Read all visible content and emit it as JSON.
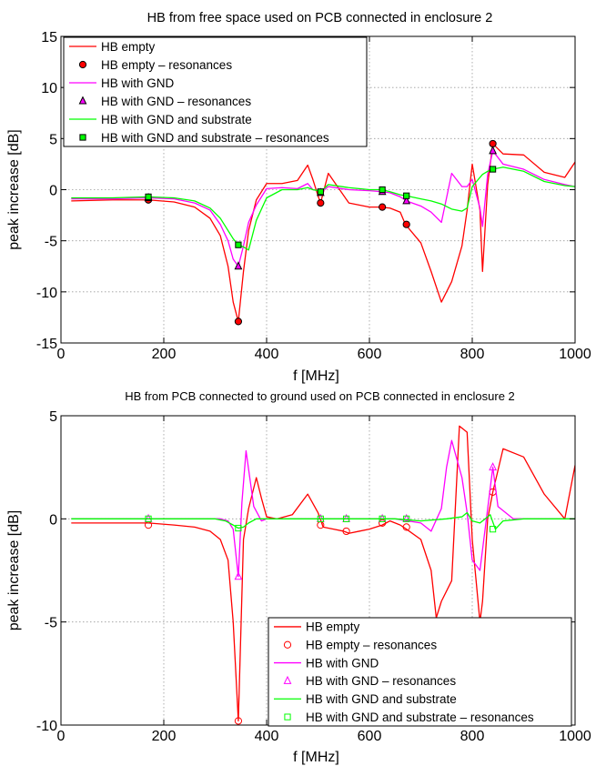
{
  "chart_data": [
    {
      "type": "line",
      "title": "HB from free space used on PCB connected in enclosure 2",
      "xlabel": "f [MHz]",
      "ylabel": "peak increase [dB]",
      "xlim": [
        0,
        1000
      ],
      "ylim": [
        -15,
        15
      ],
      "xticks": [
        0,
        200,
        400,
        600,
        800,
        1000
      ],
      "yticks": [
        -15,
        -10,
        -5,
        0,
        5,
        10,
        15
      ],
      "grid": true,
      "legend_position": "top-left",
      "series": [
        {
          "name": "HB empty",
          "color": "#ff0000",
          "marker": "none",
          "x": [
            20,
            100,
            170,
            220,
            260,
            290,
            310,
            325,
            335,
            345,
            355,
            365,
            380,
            400,
            430,
            460,
            480,
            490,
            500,
            505,
            520,
            560,
            600,
            620,
            640,
            660,
            670,
            700,
            720,
            740,
            760,
            780,
            790,
            800,
            815,
            820,
            830,
            840,
            860,
            900,
            940,
            980,
            1000
          ],
          "y": [
            -1.1,
            -1.0,
            -1.0,
            -1.2,
            -1.7,
            -2.8,
            -4.5,
            -7.5,
            -11.0,
            -12.9,
            -8.0,
            -4.0,
            -1.0,
            0.6,
            0.6,
            0.9,
            2.4,
            1.0,
            -0.6,
            -1.3,
            1.6,
            -1.3,
            -1.7,
            -1.7,
            -1.8,
            -2.2,
            -3.4,
            -5.2,
            -8.0,
            -11.0,
            -9.0,
            -5.5,
            -2.0,
            2.5,
            -2.0,
            -8.0,
            0.5,
            4.5,
            3.5,
            3.4,
            1.7,
            1.2,
            2.7
          ]
        },
        {
          "name": "HB empty – resonances",
          "color": "#ff0000",
          "marker": "filled-circle",
          "x": [
            170,
            345,
            505,
            625,
            672,
            840
          ],
          "y": [
            -1.0,
            -12.9,
            -1.3,
            -1.7,
            -3.4,
            4.5
          ]
        },
        {
          "name": "HB with GND",
          "color": "#ff00ff",
          "marker": "none",
          "x": [
            20,
            100,
            170,
            220,
            260,
            290,
            310,
            325,
            335,
            345,
            355,
            365,
            380,
            400,
            430,
            460,
            480,
            490,
            500,
            505,
            520,
            560,
            600,
            625,
            640,
            660,
            672,
            700,
            720,
            740,
            760,
            780,
            790,
            800,
            815,
            820,
            830,
            840,
            860,
            900,
            940,
            980,
            1000
          ],
          "y": [
            -0.9,
            -0.9,
            -0.8,
            -0.9,
            -1.3,
            -2.0,
            -3.4,
            -5.0,
            -6.8,
            -7.5,
            -5.5,
            -3.2,
            -1.5,
            0.1,
            0.2,
            0.1,
            0.6,
            0.0,
            -0.1,
            -0.3,
            0.3,
            0.0,
            -0.1,
            -0.2,
            -0.3,
            -0.7,
            -1.1,
            -1.6,
            -2.2,
            -3.2,
            1.6,
            0.3,
            0.3,
            1.0,
            -1.8,
            -3.6,
            1.5,
            3.8,
            2.5,
            2.0,
            1.0,
            0.5,
            0.3
          ]
        },
        {
          "name": "HB with GND – resonances",
          "color": "#ff00ff",
          "marker": "filled-triangle",
          "x": [
            170,
            345,
            505,
            625,
            672,
            840
          ],
          "y": [
            -0.8,
            -7.5,
            -0.3,
            -0.2,
            -1.1,
            3.8
          ]
        },
        {
          "name": "HB with GND and substrate",
          "color": "#00ff00",
          "marker": "none",
          "x": [
            20,
            100,
            170,
            220,
            260,
            290,
            310,
            325,
            335,
            345,
            355,
            365,
            380,
            400,
            430,
            460,
            480,
            490,
            500,
            505,
            520,
            560,
            600,
            625,
            640,
            660,
            672,
            700,
            720,
            740,
            760,
            780,
            790,
            800,
            815,
            820,
            830,
            840,
            860,
            900,
            940,
            980,
            1000
          ],
          "y": [
            -0.8,
            -0.8,
            -0.7,
            -0.8,
            -1.1,
            -1.8,
            -2.8,
            -4.0,
            -4.8,
            -5.4,
            -5.6,
            -5.9,
            -3.0,
            -0.8,
            0.0,
            0.0,
            0.2,
            0.0,
            -0.1,
            -0.2,
            0.5,
            0.2,
            0.0,
            0.0,
            -0.2,
            -0.5,
            -0.6,
            -0.9,
            -1.1,
            -1.4,
            -1.9,
            -2.1,
            -1.8,
            0.3,
            1.2,
            1.5,
            1.8,
            2.0,
            2.2,
            1.8,
            0.8,
            0.4,
            0.3
          ]
        },
        {
          "name": "HB with GND and substrate – resonances",
          "color": "#00ff00",
          "marker": "filled-square",
          "x": [
            170,
            345,
            505,
            625,
            672,
            840
          ],
          "y": [
            -0.7,
            -5.4,
            -0.2,
            0.0,
            -0.6,
            2.0
          ]
        }
      ]
    },
    {
      "type": "line",
      "title": "HB from PCB connected to ground used on PCB connected in enclosure 2",
      "xlabel": "f [MHz]",
      "ylabel": "peak increase [dB]",
      "xlim": [
        0,
        1000
      ],
      "ylim": [
        -10,
        5
      ],
      "xticks": [
        0,
        200,
        400,
        600,
        800,
        1000
      ],
      "yticks": [
        -10,
        -5,
        0,
        5
      ],
      "grid": true,
      "legend_position": "bottom-right",
      "series": [
        {
          "name": "HB empty",
          "color": "#ff0000",
          "marker": "none",
          "x": [
            20,
            100,
            170,
            220,
            260,
            290,
            310,
            325,
            335,
            345,
            355,
            365,
            380,
            390,
            400,
            420,
            450,
            480,
            500,
            510,
            530,
            550,
            560,
            580,
            600,
            625,
            640,
            660,
            672,
            700,
            720,
            730,
            740,
            760,
            775,
            790,
            800,
            815,
            820,
            830,
            840,
            860,
            900,
            940,
            980,
            1000
          ],
          "y": [
            -0.2,
            -0.2,
            -0.2,
            -0.3,
            -0.4,
            -0.6,
            -1.0,
            -2.0,
            -5.0,
            -9.8,
            -1.0,
            0.5,
            2.0,
            1.0,
            0.1,
            0.0,
            0.2,
            1.2,
            0.3,
            -0.4,
            -0.5,
            -0.6,
            -0.7,
            -0.6,
            -0.5,
            -0.3,
            -0.1,
            -0.3,
            -0.5,
            -1.0,
            -2.5,
            -4.8,
            -4.0,
            -3.0,
            4.5,
            4.2,
            -1.0,
            -5.0,
            -4.0,
            0.0,
            1.3,
            3.4,
            3.0,
            1.2,
            0.0,
            2.6
          ]
        },
        {
          "name": "HB empty – resonances",
          "color": "#ff0000",
          "marker": "open-circle",
          "x": [
            170,
            345,
            505,
            555,
            625,
            672,
            840
          ],
          "y": [
            -0.3,
            -9.8,
            -0.3,
            -0.6,
            -0.2,
            -0.4,
            1.3
          ]
        },
        {
          "name": "HB with GND",
          "color": "#ff00ff",
          "marker": "none",
          "x": [
            20,
            100,
            170,
            220,
            260,
            290,
            310,
            325,
            335,
            345,
            352,
            360,
            375,
            390,
            400,
            450,
            500,
            550,
            600,
            650,
            700,
            720,
            740,
            750,
            760,
            780,
            790,
            800,
            815,
            820,
            830,
            840,
            850,
            880,
            920,
            960,
            1000
          ],
          "y": [
            0.0,
            0.0,
            0.0,
            0.0,
            0.0,
            0.0,
            0.0,
            -0.1,
            -0.5,
            -2.8,
            0.8,
            3.3,
            0.6,
            -0.1,
            0.0,
            0.0,
            0.0,
            0.0,
            0.0,
            0.0,
            -0.2,
            -0.6,
            0.5,
            2.5,
            3.8,
            2.0,
            0.3,
            -2.0,
            -2.5,
            -1.5,
            0.5,
            2.5,
            0.6,
            0.0,
            0.0,
            0.0,
            0.0
          ]
        },
        {
          "name": "HB with GND – resonances",
          "color": "#ff00ff",
          "marker": "open-triangle",
          "x": [
            170,
            345,
            505,
            555,
            625,
            672,
            840
          ],
          "y": [
            0.0,
            -2.8,
            0.0,
            0.0,
            0.0,
            0.0,
            2.5
          ]
        },
        {
          "name": "HB with GND and substrate",
          "color": "#00ff00",
          "marker": "none",
          "x": [
            20,
            100,
            170,
            220,
            260,
            300,
            320,
            335,
            345,
            355,
            365,
            380,
            400,
            450,
            500,
            550,
            600,
            650,
            700,
            750,
            780,
            790,
            800,
            815,
            825,
            835,
            845,
            860,
            900,
            950,
            1000
          ],
          "y": [
            0.0,
            0.0,
            0.0,
            0.0,
            0.0,
            0.0,
            -0.1,
            -0.3,
            -0.45,
            -0.4,
            -0.2,
            0.0,
            0.0,
            0.0,
            0.0,
            0.0,
            0.0,
            0.0,
            -0.1,
            0.0,
            0.1,
            0.3,
            -0.1,
            -0.2,
            0.0,
            0.2,
            -0.5,
            -0.1,
            0.0,
            0.0,
            0.0
          ]
        },
        {
          "name": "HB with GND and substrate – resonances",
          "color": "#00ff00",
          "marker": "open-square",
          "x": [
            170,
            345,
            505,
            555,
            625,
            672,
            840
          ],
          "y": [
            0.0,
            -0.45,
            0.0,
            0.0,
            0.0,
            0.0,
            -0.5
          ]
        }
      ]
    }
  ]
}
